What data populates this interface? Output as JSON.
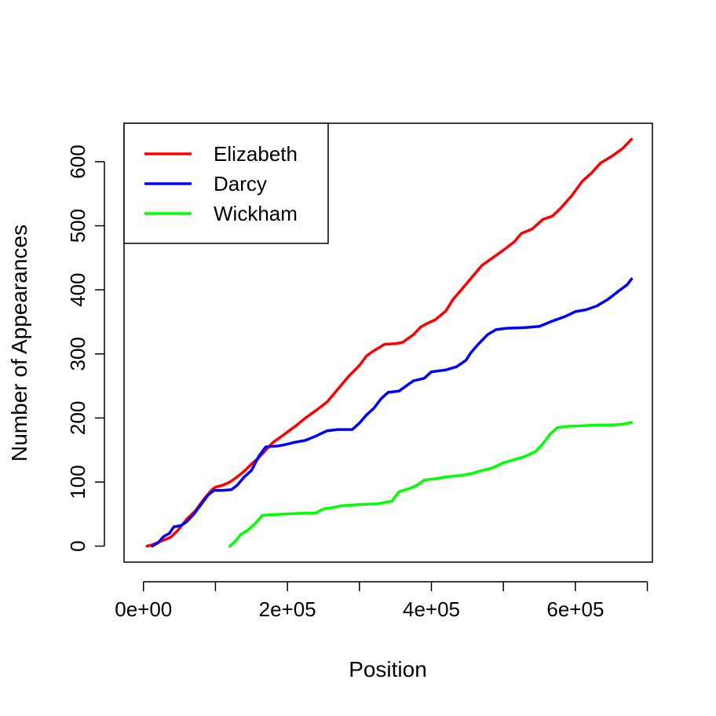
{
  "chart_data": {
    "type": "line",
    "xlabel": "Position",
    "ylabel": "Number of Appearances",
    "xlim": [
      -27000,
      707000
    ],
    "ylim": [
      -25,
      660
    ],
    "x_ticks": [
      0,
      100000,
      200000,
      300000,
      400000,
      500000,
      600000,
      700000
    ],
    "x_tick_labels": [
      "0e+00",
      "",
      "2e+05",
      "",
      "4e+05",
      "",
      "6e+05",
      ""
    ],
    "y_ticks": [
      0,
      100,
      200,
      300,
      400,
      500,
      600
    ],
    "y_tick_labels": [
      "0",
      "100",
      "200",
      "300",
      "400",
      "500",
      "600"
    ],
    "grid": false,
    "legend_position": "top-left",
    "series": [
      {
        "name": "Elizabeth",
        "color": "#ff0000",
        "points": [
          [
            5000,
            0
          ],
          [
            12000,
            2
          ],
          [
            25000,
            8
          ],
          [
            38000,
            14
          ],
          [
            48000,
            25
          ],
          [
            60000,
            42
          ],
          [
            72000,
            55
          ],
          [
            83000,
            72
          ],
          [
            95000,
            88
          ],
          [
            100000,
            92
          ],
          [
            110000,
            95
          ],
          [
            120000,
            100
          ],
          [
            130000,
            108
          ],
          [
            140000,
            117
          ],
          [
            150000,
            128
          ],
          [
            160000,
            138
          ],
          [
            170000,
            150
          ],
          [
            180000,
            162
          ],
          [
            190000,
            170
          ],
          [
            200000,
            178
          ],
          [
            212000,
            188
          ],
          [
            225000,
            200
          ],
          [
            240000,
            212
          ],
          [
            255000,
            225
          ],
          [
            270000,
            245
          ],
          [
            285000,
            265
          ],
          [
            300000,
            282
          ],
          [
            310000,
            297
          ],
          [
            320000,
            305
          ],
          [
            335000,
            315
          ],
          [
            350000,
            316
          ],
          [
            360000,
            318
          ],
          [
            375000,
            330
          ],
          [
            385000,
            342
          ],
          [
            395000,
            348
          ],
          [
            405000,
            353
          ],
          [
            420000,
            367
          ],
          [
            430000,
            385
          ],
          [
            440000,
            398
          ],
          [
            455000,
            418
          ],
          [
            470000,
            438
          ],
          [
            485000,
            450
          ],
          [
            500000,
            462
          ],
          [
            515000,
            475
          ],
          [
            525000,
            488
          ],
          [
            540000,
            495
          ],
          [
            555000,
            510
          ],
          [
            568000,
            515
          ],
          [
            580000,
            528
          ],
          [
            595000,
            547
          ],
          [
            610000,
            570
          ],
          [
            622000,
            582
          ],
          [
            635000,
            598
          ],
          [
            650000,
            608
          ],
          [
            665000,
            620
          ],
          [
            678000,
            635
          ]
        ]
      },
      {
        "name": "Darcy",
        "color": "#0000ff",
        "points": [
          [
            12000,
            0
          ],
          [
            20000,
            5
          ],
          [
            28000,
            15
          ],
          [
            36000,
            20
          ],
          [
            42000,
            30
          ],
          [
            52000,
            32
          ],
          [
            60000,
            38
          ],
          [
            70000,
            50
          ],
          [
            80000,
            65
          ],
          [
            90000,
            80
          ],
          [
            98000,
            87
          ],
          [
            110000,
            87
          ],
          [
            122000,
            88
          ],
          [
            130000,
            95
          ],
          [
            140000,
            108
          ],
          [
            150000,
            118
          ],
          [
            160000,
            140
          ],
          [
            170000,
            155
          ],
          [
            185000,
            156
          ],
          [
            195000,
            158
          ],
          [
            210000,
            162
          ],
          [
            225000,
            165
          ],
          [
            240000,
            172
          ],
          [
            255000,
            180
          ],
          [
            270000,
            182
          ],
          [
            290000,
            182
          ],
          [
            300000,
            192
          ],
          [
            310000,
            205
          ],
          [
            320000,
            215
          ],
          [
            330000,
            230
          ],
          [
            340000,
            240
          ],
          [
            355000,
            242
          ],
          [
            365000,
            250
          ],
          [
            375000,
            258
          ],
          [
            390000,
            262
          ],
          [
            400000,
            272
          ],
          [
            420000,
            275
          ],
          [
            435000,
            280
          ],
          [
            448000,
            290
          ],
          [
            455000,
            302
          ],
          [
            465000,
            315
          ],
          [
            478000,
            330
          ],
          [
            490000,
            338
          ],
          [
            505000,
            340
          ],
          [
            530000,
            341
          ],
          [
            550000,
            343
          ],
          [
            570000,
            352
          ],
          [
            585000,
            358
          ],
          [
            600000,
            366
          ],
          [
            615000,
            369
          ],
          [
            630000,
            375
          ],
          [
            645000,
            385
          ],
          [
            660000,
            398
          ],
          [
            672000,
            408
          ],
          [
            678000,
            417
          ]
        ]
      },
      {
        "name": "Wickham",
        "color": "#00ff00",
        "points": [
          [
            120000,
            0
          ],
          [
            128000,
            8
          ],
          [
            135000,
            18
          ],
          [
            145000,
            25
          ],
          [
            155000,
            35
          ],
          [
            165000,
            48
          ],
          [
            180000,
            49
          ],
          [
            195000,
            50
          ],
          [
            215000,
            51
          ],
          [
            240000,
            52
          ],
          [
            250000,
            58
          ],
          [
            262000,
            60
          ],
          [
            275000,
            63
          ],
          [
            300000,
            65
          ],
          [
            325000,
            66
          ],
          [
            345000,
            70
          ],
          [
            355000,
            85
          ],
          [
            370000,
            90
          ],
          [
            380000,
            95
          ],
          [
            390000,
            103
          ],
          [
            405000,
            105
          ],
          [
            420000,
            108
          ],
          [
            440000,
            110
          ],
          [
            455000,
            113
          ],
          [
            470000,
            118
          ],
          [
            485000,
            122
          ],
          [
            500000,
            130
          ],
          [
            515000,
            135
          ],
          [
            530000,
            140
          ],
          [
            545000,
            148
          ],
          [
            555000,
            160
          ],
          [
            565000,
            175
          ],
          [
            575000,
            185
          ],
          [
            590000,
            187
          ],
          [
            610000,
            188
          ],
          [
            630000,
            189
          ],
          [
            650000,
            189
          ],
          [
            665000,
            190
          ],
          [
            678000,
            193
          ]
        ]
      }
    ]
  }
}
